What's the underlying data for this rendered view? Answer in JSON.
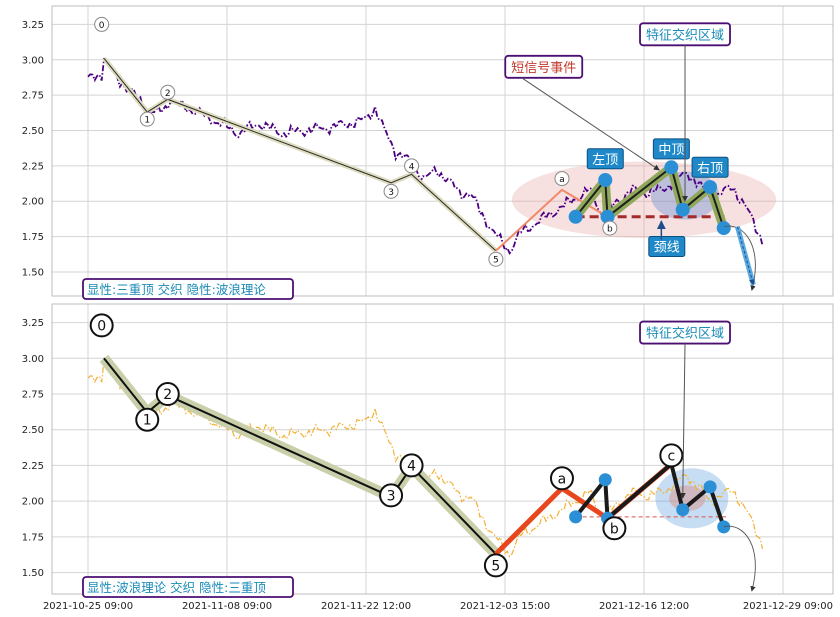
{
  "chart_data": [
    {
      "type": "line",
      "x_ticks": [
        "2021-10-25 09:00",
        "2021-11-08 09:00",
        "2021-11-22 12:00",
        "2021-12-03 15:00",
        "2021-12-16 12:00",
        "2021-12-29 09:00"
      ],
      "x_tick_index": [
        0,
        61,
        122,
        183,
        244,
        305
      ],
      "ylim": [
        1.33,
        3.38
      ],
      "y_ticks": [
        "1.50",
        "1.75",
        "2.00",
        "2.25",
        "2.50",
        "2.75",
        "3.00",
        "3.25"
      ],
      "y_tick_values": [
        1.5,
        1.75,
        2.0,
        2.25,
        2.5,
        2.75,
        3.0,
        3.25
      ],
      "grid": true,
      "caption": "显性:三重顶 交织 隐性:波浪理论",
      "price_colors": {
        "pre": "#4b0082",
        "post": "#4b0082"
      },
      "price_style": "dash-dot",
      "price_anchors": [
        [
          0,
          2.86
        ],
        [
          6,
          2.9
        ],
        [
          7,
          3.02
        ],
        [
          12,
          2.88
        ],
        [
          20,
          2.76
        ],
        [
          26,
          2.65
        ],
        [
          30,
          2.62
        ],
        [
          34,
          2.66
        ],
        [
          36,
          2.72
        ],
        [
          40,
          2.68
        ],
        [
          48,
          2.63
        ],
        [
          58,
          2.55
        ],
        [
          66,
          2.48
        ],
        [
          75,
          2.55
        ],
        [
          85,
          2.48
        ],
        [
          95,
          2.5
        ],
        [
          105,
          2.52
        ],
        [
          115,
          2.55
        ],
        [
          122,
          2.58
        ],
        [
          126,
          2.66
        ],
        [
          130,
          2.5
        ],
        [
          135,
          2.35
        ],
        [
          140,
          2.3
        ],
        [
          145,
          2.2
        ],
        [
          148,
          2.16
        ],
        [
          153,
          2.22
        ],
        [
          158,
          2.15
        ],
        [
          163,
          2.06
        ],
        [
          168,
          2.05
        ],
        [
          172,
          1.93
        ],
        [
          178,
          1.78
        ],
        [
          182,
          1.7
        ],
        [
          185,
          1.65
        ],
        [
          190,
          1.78
        ],
        [
          200,
          1.88
        ],
        [
          207,
          1.95
        ],
        [
          212,
          2.0
        ],
        [
          220,
          2.08
        ],
        [
          226,
          1.9
        ],
        [
          230,
          1.96
        ],
        [
          238,
          2.08
        ],
        [
          244,
          2.06
        ],
        [
          252,
          2.08
        ],
        [
          258,
          2.15
        ],
        [
          263,
          2.2
        ],
        [
          268,
          2.12
        ],
        [
          273,
          2.02
        ],
        [
          278,
          2.06
        ],
        [
          283,
          2.1
        ],
        [
          290,
          1.92
        ],
        [
          296,
          1.72
        ]
      ],
      "wave_line": [
        [
          7,
          3.01
        ],
        [
          26,
          2.63
        ],
        [
          35,
          2.72
        ],
        [
          133,
          2.13
        ],
        [
          142,
          2.19
        ],
        [
          179,
          1.65
        ]
      ],
      "wave_color": "#2a2a2a",
      "wave_halo": "#dedcbf",
      "wave_labels": [
        {
          "text": "0",
          "x": 6,
          "y": 3.25,
          "style": "small"
        },
        {
          "text": "1",
          "x": 26,
          "y": 2.58,
          "style": "small"
        },
        {
          "text": "2",
          "x": 35,
          "y": 2.77,
          "style": "small"
        },
        {
          "text": "3",
          "x": 133,
          "y": 2.07,
          "style": "small"
        },
        {
          "text": "4",
          "x": 142,
          "y": 2.25,
          "style": "small"
        },
        {
          "text": "5",
          "x": 179,
          "y": 1.59,
          "style": "small"
        }
      ],
      "abc_line": [
        [
          179,
          1.65
        ],
        [
          208,
          2.08
        ],
        [
          228,
          1.89
        ],
        [
          256,
          2.24
        ]
      ],
      "abc_color": "#f08a6a",
      "abc_labels": [
        {
          "text": "a",
          "x": 208,
          "y": 2.16,
          "style": "small"
        },
        {
          "text": "b",
          "x": 229,
          "y": 1.81,
          "style": "small"
        }
      ],
      "pattern_line": [
        [
          214,
          1.89
        ],
        [
          227,
          2.15
        ],
        [
          228,
          1.89
        ],
        [
          256,
          2.24
        ],
        [
          261,
          1.94
        ],
        [
          273,
          2.1
        ],
        [
          279,
          1.81
        ]
      ],
      "pattern_color": "#1e1e1e",
      "pattern_halo": "#8fa85a",
      "pattern_points": [
        [
          214,
          1.89
        ],
        [
          227,
          2.15
        ],
        [
          228,
          1.89
        ],
        [
          256,
          2.24
        ],
        [
          261,
          1.94
        ],
        [
          273,
          2.1
        ],
        [
          279,
          1.81
        ]
      ],
      "neckline": {
        "x1": 214,
        "x2": 280,
        "y": 1.89,
        "color": "#a52a2a"
      },
      "zones": [
        {
          "cx": 244,
          "cy": 2.01,
          "rx": 58,
          "ry": 0.27,
          "fill": "rgba(229,160,160,0.32)"
        },
        {
          "cx": 262,
          "cy": 2.04,
          "rx": 15,
          "ry": 0.17,
          "fill": "rgba(80,130,210,0.35)"
        }
      ],
      "head_labels": [
        {
          "text": "左顶",
          "x": 227,
          "y": 2.3
        },
        {
          "text": "中顶",
          "x": 256,
          "y": 2.37
        },
        {
          "text": "右顶",
          "x": 273,
          "y": 2.24
        },
        {
          "text": "颈线",
          "x": 254,
          "y": 1.68
        }
      ],
      "callouts": [
        {
          "text": "短信号事件",
          "x": 200,
          "y": 2.95,
          "color": "#c0392b"
        },
        {
          "text": "特征交织区域",
          "x": 262,
          "y": 3.18,
          "color": "#1a8bb7"
        }
      ]
    },
    {
      "type": "line",
      "x_ticks": [
        "2021-10-25 09:00",
        "2021-11-08 09:00",
        "2021-11-22 12:00",
        "2021-12-03 15:00",
        "2021-12-16 12:00",
        "2021-12-29 09:00"
      ],
      "x_tick_index": [
        0,
        61,
        122,
        183,
        244,
        305
      ],
      "ylim": [
        1.35,
        3.38
      ],
      "y_ticks": [
        "1.50",
        "1.75",
        "2.00",
        "2.25",
        "2.50",
        "2.75",
        "3.00",
        "3.25"
      ],
      "y_tick_values": [
        1.5,
        1.75,
        2.0,
        2.25,
        2.5,
        2.75,
        3.0,
        3.25
      ],
      "grid": true,
      "caption": "显性:波浪理论 交织 隐性:三重顶",
      "price_colors": {
        "pre": "#f2b134",
        "post": "#f2b134"
      },
      "price_style": "dash-dot",
      "wave_line": [
        [
          7,
          3.0
        ],
        [
          26,
          2.62
        ],
        [
          35,
          2.74
        ],
        [
          133,
          2.03
        ],
        [
          142,
          2.24
        ],
        [
          179,
          1.63
        ]
      ],
      "wave_color": "#111111",
      "wave_halo": "#c9cfa9",
      "wave_labels": [
        {
          "text": "0",
          "x": 6,
          "y": 3.23,
          "style": "big"
        },
        {
          "text": "1",
          "x": 26,
          "y": 2.57,
          "style": "big"
        },
        {
          "text": "2",
          "x": 35,
          "y": 2.75,
          "style": "big"
        },
        {
          "text": "3",
          "x": 133,
          "y": 2.04,
          "style": "big"
        },
        {
          "text": "4",
          "x": 142,
          "y": 2.25,
          "style": "big"
        },
        {
          "text": "5",
          "x": 179,
          "y": 1.55,
          "style": "big"
        },
        {
          "text": "a",
          "x": 208,
          "y": 2.16,
          "style": "big"
        },
        {
          "text": "b",
          "x": 231,
          "y": 1.81,
          "style": "big"
        },
        {
          "text": "c",
          "x": 256,
          "y": 2.32,
          "style": "big"
        }
      ],
      "abc_line": [
        [
          179,
          1.63
        ],
        [
          208,
          2.09
        ],
        [
          228,
          1.88
        ],
        [
          256,
          2.26
        ]
      ],
      "abc_color": "#e8461c",
      "pattern_line": [
        [
          214,
          1.89
        ],
        [
          227,
          2.15
        ],
        [
          228,
          1.88
        ],
        [
          256,
          2.26
        ],
        [
          261,
          1.94
        ],
        [
          273,
          2.1
        ],
        [
          279,
          1.82
        ]
      ],
      "pattern_color": "#1a1a1a",
      "pattern_points": [
        [
          214,
          1.89
        ],
        [
          227,
          2.15
        ],
        [
          228,
          1.88
        ],
        [
          261,
          1.94
        ],
        [
          273,
          2.1
        ],
        [
          279,
          1.82
        ]
      ],
      "neckline": {
        "x1": 214,
        "x2": 280,
        "y": 1.89,
        "color": "#d9534f"
      },
      "zones": [
        {
          "cx": 265,
          "cy": 2.02,
          "rx": 16,
          "ry": 0.21,
          "fill": "rgba(80,150,220,0.32)"
        },
        {
          "cx": 263,
          "cy": 2.02,
          "rx": 8,
          "ry": 0.09,
          "fill": "rgba(220,140,130,0.45)"
        }
      ],
      "callouts": [
        {
          "text": "特征交织区域",
          "x": 262,
          "y": 3.18,
          "color": "#1a8bb7"
        }
      ]
    }
  ]
}
